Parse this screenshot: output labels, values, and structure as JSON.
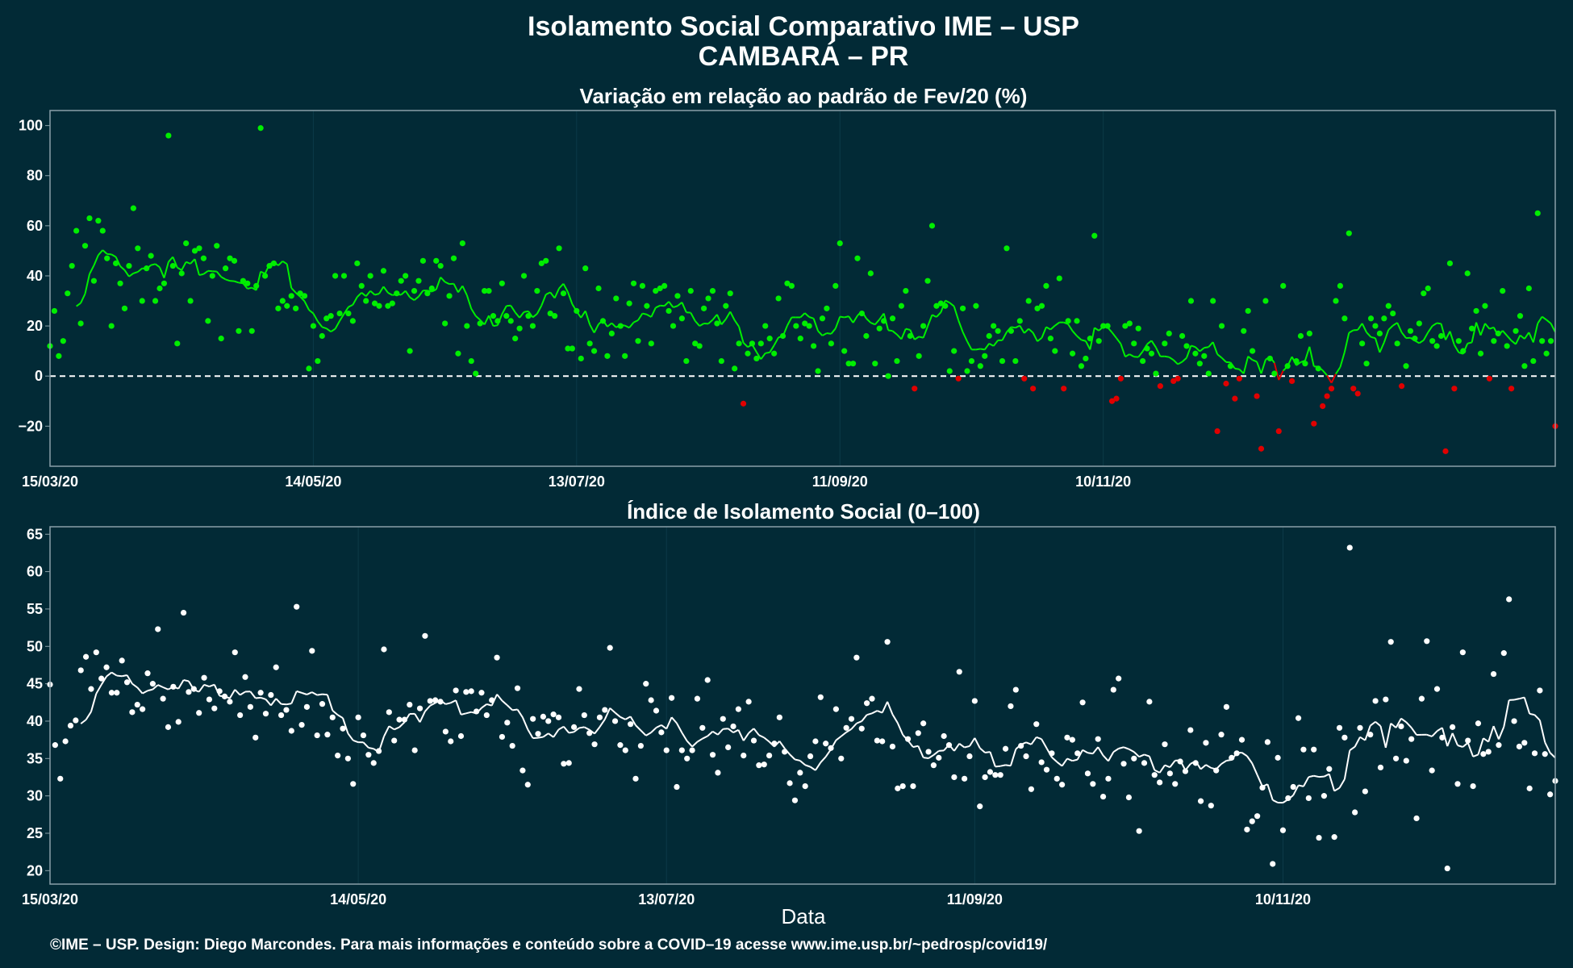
{
  "figure": {
    "title_line1": "Isolamento Social Comparativo IME – USP",
    "title_line2": "CAMBARÁ – PR",
    "xlabel": "Data",
    "footer": "©IME – USP. Design: Diego Marcondes. Para mais informações e conteúdo sobre a COVID–19 acesse www.ime.usp.br/~pedrosp/covid19/",
    "colors": {
      "background": "#022a36",
      "panel_border": "#8aa0a8",
      "positive": "#00ee00",
      "negative": "#e00000",
      "index": "#ffffff",
      "zero_line": "#ffffff"
    }
  },
  "chart_data": [
    {
      "type": "scatter",
      "title": "Variação em relação ao padrão de Fev/20 (%)",
      "x_ticks": [
        "15/03/20",
        "14/05/20",
        "13/07/20",
        "11/09/20",
        "10/11/20"
      ],
      "y_ticks": [
        -20,
        0,
        20,
        40,
        60,
        80,
        100
      ],
      "ylim": [
        -36,
        106
      ],
      "start_date": "15/03/20",
      "reference_line": 0,
      "color_rule": "green if value >= 0, red if value < 0",
      "values": [
        12,
        26,
        8,
        14,
        33,
        44,
        58,
        21,
        52,
        63,
        38,
        62,
        58,
        47,
        20,
        45,
        37,
        27,
        44,
        67,
        51,
        30,
        43,
        48,
        30,
        35,
        37,
        96,
        44,
        13,
        41,
        53,
        30,
        50,
        51,
        47,
        22,
        40,
        52,
        15,
        43,
        47,
        46,
        18,
        38,
        37,
        18,
        36,
        99,
        40,
        44,
        45,
        27,
        30,
        28,
        32,
        27,
        33,
        32,
        3,
        20,
        6,
        16,
        23,
        24,
        40,
        25,
        40,
        25,
        22,
        45,
        36,
        30,
        40,
        29,
        28,
        42,
        28,
        29,
        33,
        38,
        40,
        10,
        34,
        38,
        46,
        33,
        35,
        46,
        44,
        21,
        32,
        47,
        9,
        53,
        20,
        6,
        1,
        21,
        34,
        34,
        24,
        22,
        37,
        24,
        22,
        15,
        19,
        40,
        24,
        20,
        34,
        45,
        46,
        25,
        24,
        51,
        33,
        11,
        11,
        26,
        7,
        43,
        13,
        10,
        35,
        22,
        8,
        17,
        31,
        20,
        8,
        29,
        37,
        14,
        36,
        28,
        13,
        34,
        35,
        36,
        26,
        20,
        32,
        23,
        6,
        34,
        13,
        12,
        27,
        31,
        34,
        21,
        6,
        28,
        33,
        3,
        13,
        -11,
        9,
        13,
        7,
        13,
        20,
        15,
        9,
        31,
        16,
        37,
        36,
        20,
        15,
        21,
        20,
        12,
        2,
        23,
        27,
        13,
        36,
        53,
        10,
        5,
        5,
        47,
        25,
        16,
        41,
        5,
        19,
        22,
        0,
        23,
        6,
        28,
        34,
        16,
        -5,
        8,
        20,
        38,
        60,
        28,
        29,
        28,
        2,
        10,
        -1,
        27,
        2,
        6,
        28,
        4,
        8,
        16,
        20,
        18,
        6,
        51,
        18,
        6,
        22,
        -1,
        30,
        -5,
        27,
        28,
        36,
        15,
        10,
        39,
        -5,
        22,
        9,
        22,
        4,
        7,
        15,
        56,
        14,
        20,
        20,
        -10,
        -9,
        -1,
        20,
        21,
        13,
        19,
        6,
        11,
        9,
        1,
        -4,
        13,
        17,
        -2,
        -1,
        16,
        12,
        30,
        9,
        5,
        8,
        1,
        30,
        -22,
        20,
        -3,
        4,
        -9,
        -1,
        18,
        26,
        10,
        -8,
        -29,
        30,
        7,
        1,
        -22,
        36,
        4,
        -2,
        6,
        16,
        5,
        17,
        -19,
        3,
        -12,
        -8,
        -5,
        30,
        36,
        23,
        57,
        -5,
        -7,
        13,
        5,
        23,
        20,
        17,
        23,
        28,
        25,
        13,
        -4,
        4,
        18,
        15,
        21,
        33,
        35,
        14,
        12,
        16,
        -30,
        45,
        -5,
        14,
        10,
        41,
        19,
        26,
        9,
        28,
        -1,
        14,
        17,
        34,
        12,
        -5,
        18,
        24,
        4,
        35,
        6,
        65,
        14,
        9,
        14,
        -20
      ]
    },
    {
      "type": "scatter",
      "title": "Índice de Isolamento Social (0–100)",
      "x_ticks": [
        "15/03/20",
        "14/05/20",
        "13/07/20",
        "11/09/20",
        "10/11/20"
      ],
      "y_ticks": [
        20,
        25,
        30,
        35,
        40,
        45,
        50,
        55,
        60,
        65
      ],
      "ylim": [
        18.2,
        66
      ],
      "start_date": "15/03/20",
      "values": [
        44.9,
        36.8,
        32.3,
        37.3,
        39.4,
        40.1,
        46.8,
        48.6,
        44.3,
        49.2,
        45.7,
        47.2,
        43.8,
        43.8,
        48.1,
        45.2,
        41.2,
        42.2,
        41.6,
        46.4,
        45.0,
        52.3,
        43.0,
        39.2,
        44.6,
        39.9,
        54.5,
        43.9,
        44.3,
        41.1,
        45.8,
        42.9,
        41.7,
        44.0,
        43.3,
        42.6,
        49.2,
        40.8,
        45.9,
        41.9,
        37.8,
        43.8,
        41.0,
        43.5,
        47.2,
        40.8,
        41.5,
        38.7,
        55.3,
        39.5,
        41.9,
        49.4,
        38.1,
        42.3,
        38.2,
        40.5,
        35.4,
        39.0,
        35.0,
        31.6,
        40.5,
        38.1,
        35.5,
        34.4,
        36.0,
        49.6,
        41.2,
        37.4,
        40.2,
        40.2,
        42.2,
        36.1,
        41.7,
        51.4,
        42.7,
        42.8,
        42.6,
        38.6,
        37.3,
        44.1,
        38.0,
        43.9,
        44.0,
        41.3,
        43.8,
        40.8,
        42.8,
        48.5,
        37.9,
        39.8,
        36.7,
        44.4,
        33.4,
        31.5,
        40.3,
        38.3,
        40.6,
        40.0,
        40.9,
        40.5,
        34.3,
        34.4,
        39.2,
        44.3,
        40.8,
        38.4,
        36.9,
        40.5,
        41.5,
        49.8,
        40.0,
        36.8,
        36.1,
        39.6,
        32.3,
        36.7,
        45.0,
        42.8,
        41.4,
        38.5,
        36.1,
        43.1,
        31.2,
        36.1,
        35.0,
        36.1,
        43.0,
        39.1,
        45.5,
        35.5,
        33.1,
        40.3,
        36.5,
        39.3,
        41.6,
        35.4,
        42.6,
        37.4,
        34.1,
        34.2,
        35.4,
        37.0,
        40.5,
        35.9,
        31.7,
        29.4,
        33.1,
        31.3,
        35.3,
        37.3,
        43.2,
        37.0,
        36.4,
        41.6,
        35.0,
        39.1,
        40.3,
        48.5,
        39.0,
        42.4,
        43.0,
        37.4,
        37.3,
        50.6,
        36.6,
        31.0,
        31.3,
        37.6,
        31.3,
        38.4,
        39.7,
        35.9,
        34.1,
        35.1,
        38.0,
        36.8,
        32.5,
        46.6,
        32.3,
        35.3,
        42.7,
        28.6,
        32.5,
        33.2,
        32.8,
        32.8,
        36.3,
        42.0,
        44.2,
        36.7,
        35.3,
        30.9,
        39.6,
        34.5,
        33.5,
        35.7,
        32.3,
        31.5,
        37.8,
        37.5,
        35.7,
        42.5,
        33.0,
        31.6,
        37.6,
        29.9,
        32.3,
        44.2,
        45.7,
        34.3,
        29.8,
        35.0,
        25.3,
        34.4,
        42.6,
        32.8,
        31.8,
        36.9,
        33.0,
        31.6,
        34.6,
        33.3,
        38.8,
        34.4,
        29.3,
        37.1,
        28.7,
        33.4,
        38.2,
        41.9,
        35.1,
        35.7,
        37.5,
        25.5,
        26.6,
        27.3,
        31.1,
        37.2,
        20.9,
        35.1,
        25.4,
        29.7,
        31.2,
        40.4,
        36.2,
        29.7,
        36.2,
        24.4,
        30.0,
        33.6,
        24.5,
        39.1,
        37.8,
        63.2,
        27.8,
        39.1,
        30.6,
        38.2,
        42.7,
        33.8,
        42.9,
        50.6,
        35.0,
        39.3,
        34.7,
        37.6,
        27.0,
        43.0,
        50.7,
        33.4,
        44.3,
        37.8,
        20.3,
        39.2,
        31.6,
        49.2,
        37.4,
        31.3,
        39.7,
        35.6,
        35.9,
        46.3,
        36.8,
        49.1,
        56.3,
        40.0,
        36.6,
        37.1,
        31.0,
        35.7,
        44.1,
        35.6,
        30.2,
        32.0
      ]
    }
  ]
}
